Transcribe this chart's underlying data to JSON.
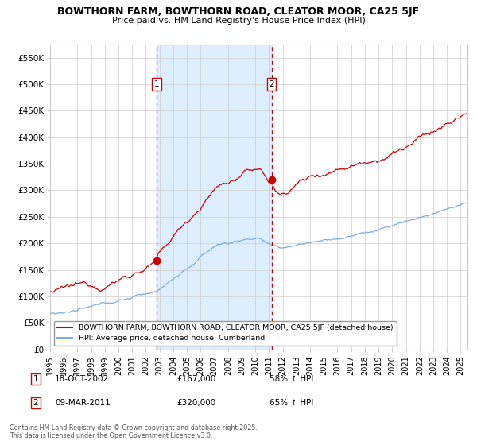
{
  "title_line1": "BOWTHORN FARM, BOWTHORN ROAD, CLEATOR MOOR, CA25 5JF",
  "title_line2": "Price paid vs. HM Land Registry's House Price Index (HPI)",
  "red_label": "BOWTHORN FARM, BOWTHORN ROAD, CLEATOR MOOR, CA25 5JF (detached house)",
  "blue_label": "HPI: Average price, detached house, Cumberland",
  "annotation1_date": "18-OCT-2002",
  "annotation1_price": "£167,000",
  "annotation1_hpi": "58% ↑ HPI",
  "annotation2_date": "09-MAR-2011",
  "annotation2_price": "£320,000",
  "annotation2_hpi": "65% ↑ HPI",
  "footer": "Contains HM Land Registry data © Crown copyright and database right 2025.\nThis data is licensed under the Open Government Licence v3.0.",
  "ylim": [
    0,
    575000
  ],
  "yticks": [
    0,
    50000,
    100000,
    150000,
    200000,
    250000,
    300000,
    350000,
    400000,
    450000,
    500000,
    550000
  ],
  "ytick_labels": [
    "£0",
    "£50K",
    "£100K",
    "£150K",
    "£200K",
    "£250K",
    "£300K",
    "£350K",
    "£400K",
    "£450K",
    "£500K",
    "£550K"
  ],
  "red_color": "#cc0000",
  "blue_color": "#7aaddb",
  "vline_color": "#cc0000",
  "shade_color": "#ddeeff",
  "grid_color": "#cccccc",
  "bg_color": "#ffffff",
  "point1_x": 2002.8,
  "point1_y": 167000,
  "point2_x": 2011.18,
  "point2_y": 320000,
  "xmin": 1995.0,
  "xmax": 2025.5,
  "xticks": [
    1995,
    1996,
    1997,
    1998,
    1999,
    2000,
    2001,
    2002,
    2003,
    2004,
    2005,
    2006,
    2007,
    2008,
    2009,
    2010,
    2011,
    2012,
    2013,
    2014,
    2015,
    2016,
    2017,
    2018,
    2019,
    2020,
    2021,
    2022,
    2023,
    2024,
    2025
  ]
}
